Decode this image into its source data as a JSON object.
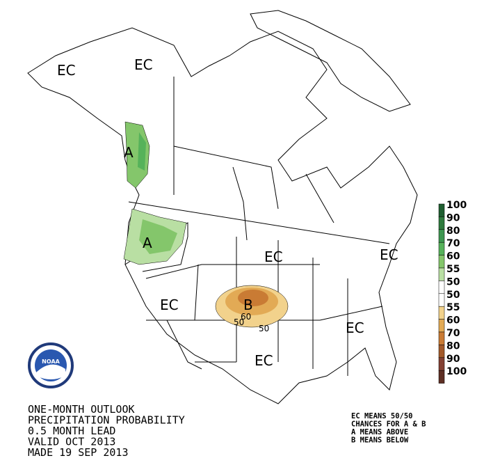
{
  "map": {
    "region_labels": [
      "EC",
      "EC",
      "A",
      "A",
      "EC",
      "EC",
      "B",
      "EC",
      "EC",
      "EC"
    ],
    "contour_labels": [
      "60",
      "50",
      "50"
    ],
    "legend": {
      "labels": [
        "100",
        "90",
        "80",
        "70",
        "60",
        "55",
        "50",
        "50",
        "55",
        "60",
        "70",
        "80",
        "90",
        "100"
      ],
      "colors": [
        "#1f5e30",
        "#2e7a3d",
        "#3d9650",
        "#56b25a",
        "#84c66b",
        "#b9dfa3",
        "#ffffff",
        "#ffffff",
        "#f2d28c",
        "#e2aa55",
        "#c97b34",
        "#a35a2a",
        "#834032",
        "#5e2f24"
      ]
    },
    "logo": "NOAA",
    "title_lines": [
      "ONE-MONTH OUTLOOK",
      "PRECIPITATION PROBABILITY",
      "0.5 MONTH LEAD",
      "VALID OCT 2013",
      "MADE 19 SEP 2013"
    ],
    "notes": [
      "EC MEANS 50/50",
      "CHANCES FOR A & B",
      "A MEANS ABOVE",
      "B MEANS BELOW"
    ]
  }
}
